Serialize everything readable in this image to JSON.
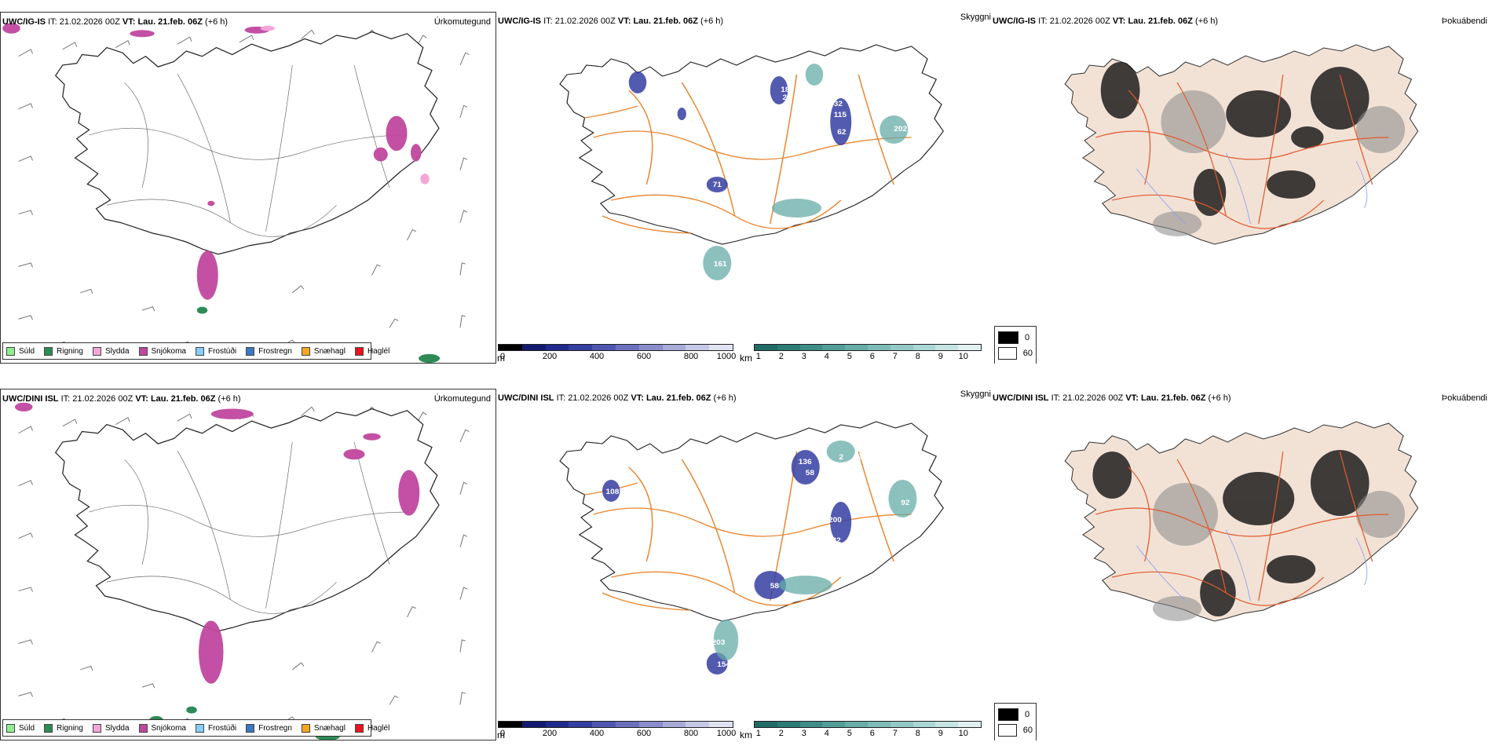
{
  "rows": [
    {
      "model": "UWC/IG-IS",
      "it_label": "IT:",
      "it_value": "21.02.2026 00Z",
      "vt_label": "VT:",
      "vt_value": "Lau. 21.feb. 06Z",
      "lead": "(+6 h)",
      "precip_title": "Úrkomutegund",
      "cloud_title": "Skyggni",
      "fog_title": "Þokuábendi",
      "cloud_labels": [
        "180",
        "32",
        "115",
        "62",
        "27",
        "202",
        "161",
        "71",
        "23"
      ]
    },
    {
      "model": "UWC/DINI ISL",
      "it_label": "IT:",
      "it_value": "21.02.2026 00Z",
      "vt_label": "VT:",
      "vt_value": "Lau. 21.feb. 06Z",
      "lead": "(+6 h)",
      "precip_title": "Úrkomutegund",
      "cloud_title": "Skyggni",
      "fog_title": "Þokuábendi",
      "cloud_labels": [
        "136",
        "58",
        "226",
        "2",
        "193",
        "200",
        "32",
        "108",
        "58",
        "203",
        "154",
        "92"
      ]
    }
  ],
  "precip_legend": [
    {
      "label": "Súld",
      "color": "#90ee90"
    },
    {
      "label": "Rigning",
      "color": "#2e8b57"
    },
    {
      "label": "Slydda",
      "color": "#f4a6d7"
    },
    {
      "label": "Snjókoma",
      "color": "#c0479f"
    },
    {
      "label": "Frostúði",
      "color": "#87cefa"
    },
    {
      "label": "Frostregn",
      "color": "#3a78c2"
    },
    {
      "label": "Snæhagl",
      "color": "#f5a623"
    },
    {
      "label": "Haglél",
      "color": "#e8141c"
    }
  ],
  "ceiling_bar": {
    "unit": "m",
    "ticks": [
      "0",
      "200",
      "400",
      "600",
      "800",
      "1000"
    ],
    "colors": [
      "#000000",
      "#111a6e",
      "#1f2a8c",
      "#343ea1",
      "#4f56b0",
      "#6b70be",
      "#8a8ccb",
      "#a8aad8",
      "#c6c8e6",
      "#e2e3f2"
    ]
  },
  "visibility_bar": {
    "unit": "km",
    "ticks": [
      "1",
      "2",
      "3",
      "4",
      "5",
      "6",
      "7",
      "8",
      "9",
      "10"
    ],
    "colors": [
      "#1f6b66",
      "#2c7c76",
      "#3e8d87",
      "#519d97",
      "#66aca7",
      "#7cbbb6",
      "#93c9c5",
      "#abd7d4",
      "#c4e4e2",
      "#e0f1f0"
    ]
  },
  "fog_legend": {
    "items": [
      {
        "label": "0",
        "color": "#000000"
      },
      {
        "label": "60",
        "color": "#ffffff"
      }
    ]
  }
}
